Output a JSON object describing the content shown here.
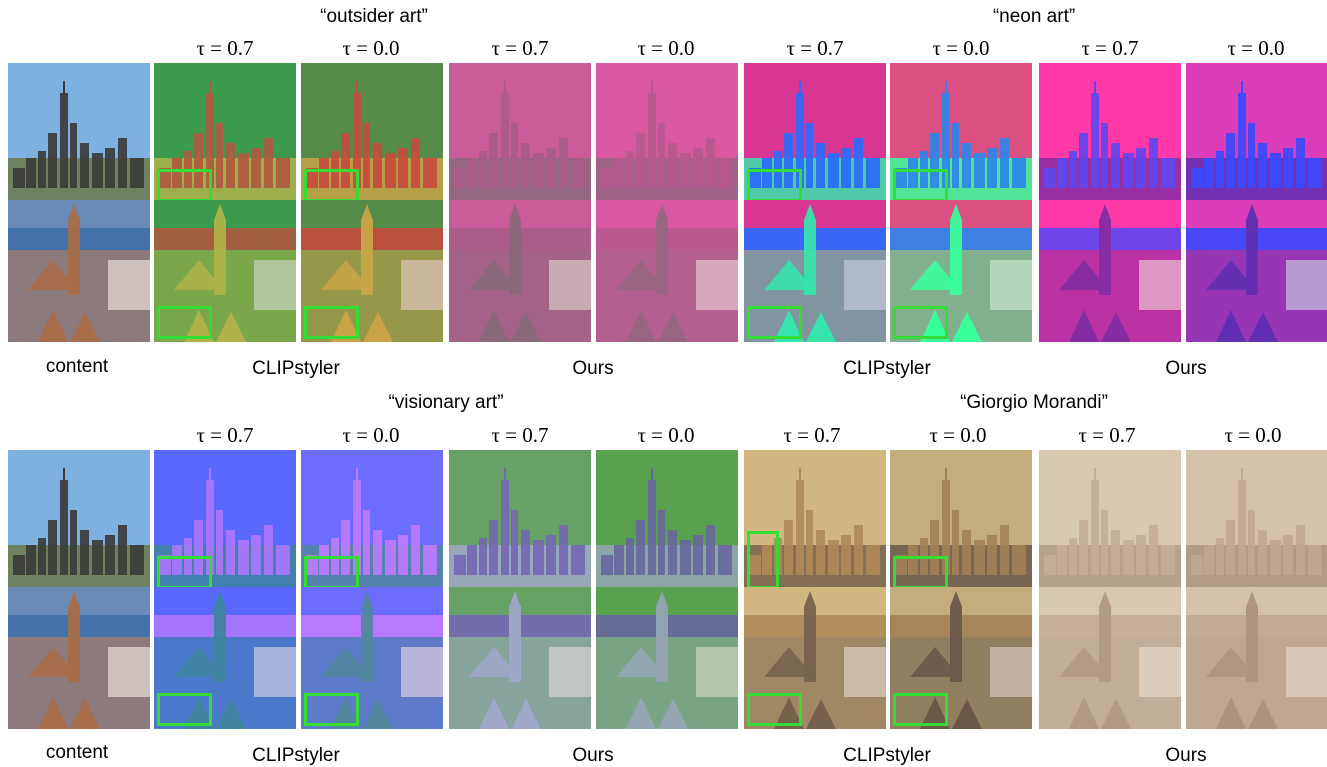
{
  "panels": [
    {
      "prompts": [
        "“outsider art”",
        "“neon art”"
      ],
      "taus": [
        "τ = 0.7",
        "τ = 0.0",
        "τ = 0.7",
        "τ = 0.0",
        "τ = 0.7",
        "τ = 0.0",
        "τ = 0.7",
        "τ = 0.0"
      ],
      "captions": [
        "content",
        "CLIPstyler",
        "Ours",
        "CLIPstyler",
        "Ours"
      ]
    },
    {
      "prompts": [
        "“visionary art”",
        "“Giorgio Morandi”"
      ],
      "taus": [
        "τ = 0.7",
        "τ = 0.0",
        "τ = 0.7",
        "τ = 0.0",
        "τ = 0.7",
        "τ = 0.0",
        "τ = 0.7",
        "τ = 0.0"
      ],
      "captions": [
        "content",
        "CLIPstyler",
        "Ours",
        "CLIPstyler",
        "Ours"
      ]
    }
  ],
  "colors": {
    "highlight_box": "#33dd33",
    "content_city": [
      "#7eb0e0",
      "#3a3a3a",
      "#6b7a4a"
    ],
    "content_campus": [
      "#6a8bb8",
      "#3f6fa6",
      "#a86d4a"
    ],
    "outsider_clipstyler": [
      "#3c9a4c",
      "#c84a3e",
      "#c8b84a"
    ],
    "outsider_ours": [
      "#d85aa0",
      "#b05a8a",
      "#8a6a7a"
    ],
    "neon_clipstyler": [
      "#ff2a7a",
      "#2a6aff",
      "#3aff9a"
    ],
    "neon_ours": [
      "#ff3aa8",
      "#3a4aff",
      "#6a2aa0"
    ],
    "visionary_clipstyler": [
      "#5a6aff",
      "#c07aff",
      "#3a8a8a"
    ],
    "visionary_ours": [
      "#5aa050",
      "#6a5ab0",
      "#a0a8c8"
    ],
    "morandi_clipstyler": [
      "#d8c088",
      "#b08a5a",
      "#6a5a4a"
    ],
    "morandi_ours": [
      "#d8c8b0",
      "#c0a890",
      "#a89078"
    ]
  }
}
